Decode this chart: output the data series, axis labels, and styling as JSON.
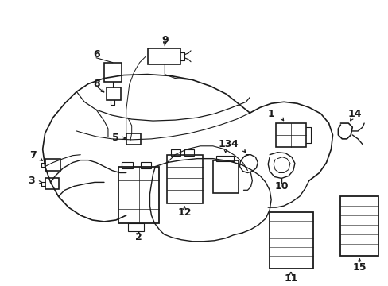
{
  "bg_color": "#ffffff",
  "line_color": "#1a1a1a",
  "figsize": [
    4.89,
    3.6
  ],
  "dpi": 100,
  "label_fontsize": 9,
  "label_fontweight": "bold"
}
